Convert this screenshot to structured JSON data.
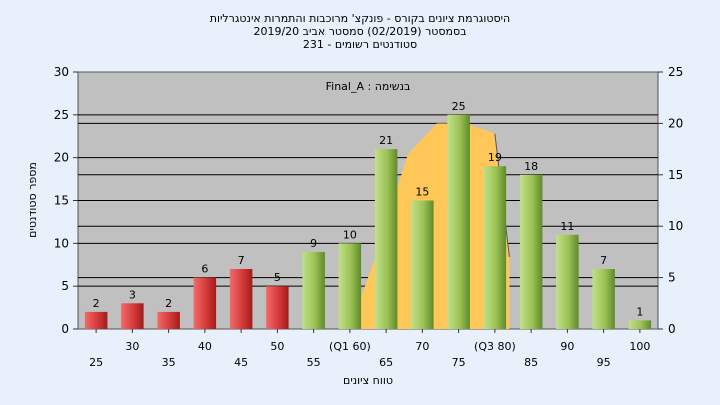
{
  "chart_data": {
    "type": "bar",
    "title_lines": [
      "היסטוגרמת ציונים בקורס - פונקצ' מרוכבות והתמרות אינטגרליות",
      "בסמסטר  (02/2019)  סמסטר אביב 2019/20",
      "231 - סטודנטים רשומים"
    ],
    "annotation": "Final_A : בנשימה",
    "xlabel": "טווח ציונים",
    "ylabel": "מספר סטודנטים",
    "ylim": [
      0,
      30
    ],
    "y2lim": [
      0,
      25
    ],
    "yticks": [
      0,
      5,
      10,
      15,
      20,
      25,
      30
    ],
    "y2ticks": [
      0,
      5,
      10,
      15,
      20,
      25
    ],
    "categories": [
      "25",
      "30",
      "35",
      "40",
      "45",
      "50",
      "55",
      "(Q1 60)",
      "65",
      "70",
      "75",
      "(Q3 80)",
      "85",
      "90",
      "95",
      "100"
    ],
    "values": [
      2,
      3,
      2,
      6,
      7,
      5,
      9,
      10,
      21,
      15,
      25,
      19,
      18,
      11,
      7,
      1
    ],
    "bar_colors": [
      "red",
      "red",
      "red",
      "red",
      "red",
      "red",
      "green",
      "green",
      "green",
      "green",
      "green",
      "green",
      "green",
      "green",
      "green",
      "green"
    ],
    "iqr_area": {
      "x": [
        60,
        64,
        68,
        72,
        76,
        80,
        82
      ],
      "y": [
        0,
        8,
        17,
        20,
        20,
        19,
        7
      ]
    },
    "grid": true,
    "colors": {
      "red_bar": "#d63a3a",
      "green_bar": "#9bc254",
      "plot_bg": "#c0c0c0",
      "iqr_fill": "#ffc758",
      "background": "#e8f1fb"
    }
  }
}
